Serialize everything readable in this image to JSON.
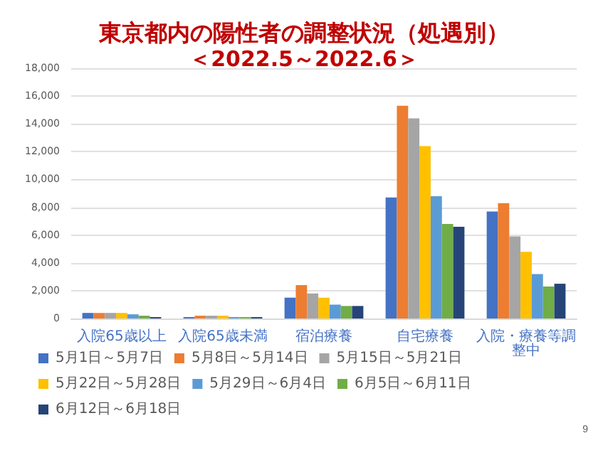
{
  "chart_data": {
    "type": "bar",
    "title": "東京都内の陽性者の調整状況（処遇別）",
    "subtitle": "＜2022.5～2022.6＞",
    "categories": [
      "入院65歳以上",
      "入院65歳未満",
      "宿泊療養",
      "自宅療養",
      "入院・療養等調整中"
    ],
    "series": [
      {
        "name": "5月1日～5月7日",
        "color": "#4472c4",
        "values": [
          400,
          100,
          1500,
          8700,
          7700
        ]
      },
      {
        "name": "5月8日～5月14日",
        "color": "#ed7d31",
        "values": [
          400,
          200,
          2400,
          15300,
          8300
        ]
      },
      {
        "name": "5月15日～5月21日",
        "color": "#a5a5a5",
        "values": [
          400,
          200,
          1800,
          14400,
          5900
        ]
      },
      {
        "name": "5月22日～5月28日",
        "color": "#ffc000",
        "values": [
          400,
          200,
          1500,
          12400,
          4800
        ]
      },
      {
        "name": "5月29日～6月4日",
        "color": "#5b9bd5",
        "values": [
          300,
          100,
          1000,
          8800,
          3200
        ]
      },
      {
        "name": "6月5日～6月11日",
        "color": "#70ad47",
        "values": [
          200,
          100,
          900,
          6800,
          2300
        ]
      },
      {
        "name": "6月12日～6月18日",
        "color": "#264478",
        "values": [
          100,
          100,
          900,
          6600,
          2500
        ]
      }
    ],
    "ylim": [
      0,
      18000
    ],
    "yticks": [
      0,
      {
        "value": 2000,
        "label": "2,000"
      },
      {
        "value": 4000,
        "label": "4,000"
      },
      {
        "value": 6000,
        "label": "6,000"
      },
      {
        "value": 8000,
        "label": "8,000"
      },
      {
        "value": 10000,
        "label": "10,000"
      },
      {
        "value": 12000,
        "label": "12,000"
      },
      {
        "value": 14000,
        "label": "14,000"
      },
      {
        "value": 16000,
        "label": "16,000"
      },
      {
        "value": 18000,
        "label": "18,000"
      }
    ],
    "grid": "y",
    "legend": "bottom",
    "annotations": [
      "9"
    ]
  }
}
